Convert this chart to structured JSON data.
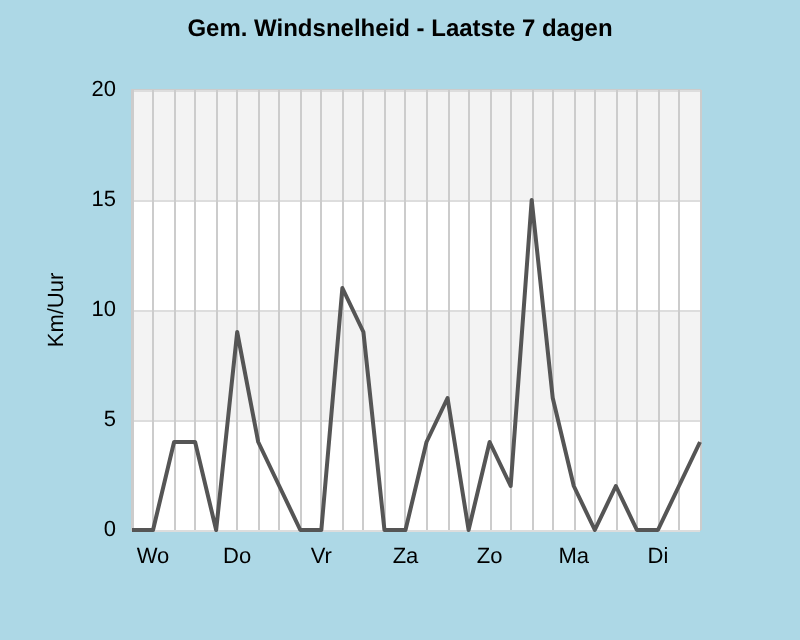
{
  "chart_data": {
    "type": "line",
    "title": "Gem. Windsnelheid - Laatste 7 dagen",
    "ylabel": "Km/Uur",
    "categories": [
      null,
      "Wo",
      null,
      null,
      null,
      "Do",
      null,
      null,
      null,
      "Vr",
      null,
      null,
      null,
      "Za",
      null,
      null,
      null,
      "Zo",
      null,
      null,
      null,
      "Ma",
      null,
      null,
      null,
      "Di",
      null,
      null
    ],
    "series": [
      {
        "color": "#555555",
        "values": [
          0,
          0,
          4,
          4,
          0,
          9,
          4,
          2,
          0,
          0,
          11,
          9,
          0,
          0,
          4,
          6,
          0,
          4,
          2,
          15,
          6,
          2,
          0,
          2,
          0,
          0,
          2,
          4
        ]
      }
    ],
    "ylim": [
      0,
      20
    ],
    "yticks": [
      0,
      5,
      10,
      15,
      20
    ],
    "grid": true,
    "marker": "none",
    "line_style": "solid"
  }
}
